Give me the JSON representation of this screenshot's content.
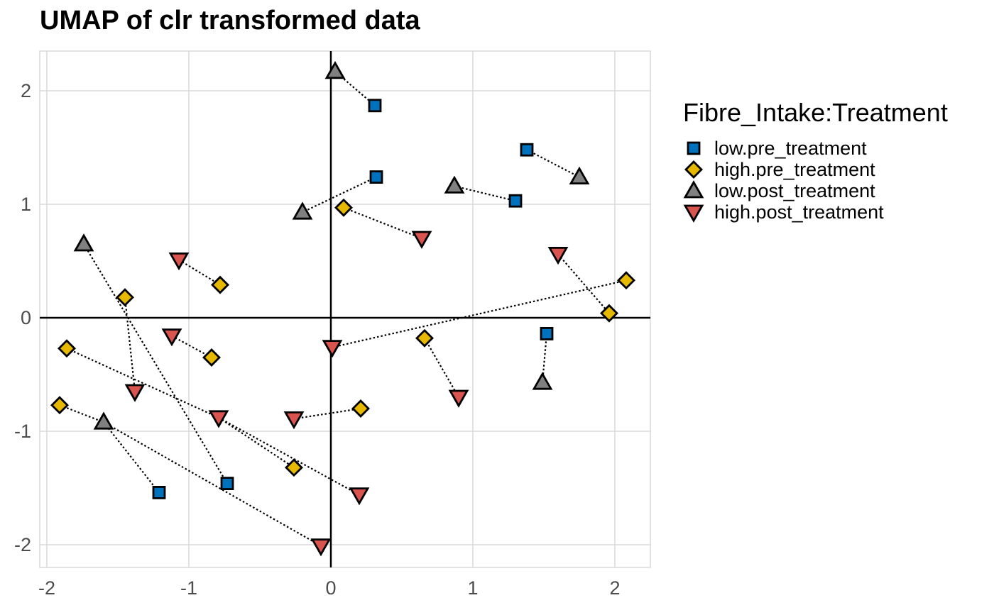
{
  "chart_data": {
    "type": "scatter",
    "title": "UMAP of clr transformed data",
    "xlabel": "",
    "ylabel": "",
    "xlim": [
      -2.05,
      2.25
    ],
    "ylim": [
      -2.2,
      2.35
    ],
    "xticks": [
      -2,
      -1,
      0,
      1,
      2
    ],
    "yticks": [
      -2,
      -1,
      0,
      1,
      2
    ],
    "grid": true,
    "reference_lines": {
      "x": 0,
      "y": 0
    },
    "legend": {
      "title": "Fibre_Intake:Treatment",
      "position": "right"
    },
    "series": [
      {
        "name": "low.pre_treatment",
        "marker": "square",
        "color": "#0072BD",
        "points": [
          {
            "x": 0.31,
            "y": 1.87
          },
          {
            "x": 0.32,
            "y": 1.24
          },
          {
            "x": 1.38,
            "y": 1.48
          },
          {
            "x": 1.3,
            "y": 1.03
          },
          {
            "x": 1.52,
            "y": -0.14
          },
          {
            "x": -1.21,
            "y": -1.54
          },
          {
            "x": -0.73,
            "y": -1.46
          }
        ]
      },
      {
        "name": "high.pre_treatment",
        "marker": "diamond",
        "color": "#E6B800",
        "points": [
          {
            "x": 0.09,
            "y": 0.97
          },
          {
            "x": -0.78,
            "y": 0.29
          },
          {
            "x": -1.45,
            "y": 0.18
          },
          {
            "x": 2.08,
            "y": 0.33
          },
          {
            "x": 1.96,
            "y": 0.04
          },
          {
            "x": -1.86,
            "y": -0.27
          },
          {
            "x": -0.84,
            "y": -0.35
          },
          {
            "x": 0.66,
            "y": -0.18
          },
          {
            "x": -1.91,
            "y": -0.77
          },
          {
            "x": 0.21,
            "y": -0.8
          },
          {
            "x": -0.26,
            "y": -1.32
          }
        ]
      },
      {
        "name": "low.post_treatment",
        "marker": "triangle-up",
        "color": "#808080",
        "points": [
          {
            "x": 0.03,
            "y": 2.17
          },
          {
            "x": -0.2,
            "y": 0.93
          },
          {
            "x": 0.87,
            "y": 1.16
          },
          {
            "x": 1.75,
            "y": 1.24
          },
          {
            "x": -1.74,
            "y": 0.65
          },
          {
            "x": 1.49,
            "y": -0.57
          },
          {
            "x": -1.6,
            "y": -0.92
          }
        ]
      },
      {
        "name": "high.post_treatment",
        "marker": "triangle-down",
        "color": "#D9534F",
        "points": [
          {
            "x": 0.64,
            "y": 0.7
          },
          {
            "x": -1.07,
            "y": 0.51
          },
          {
            "x": 1.6,
            "y": 0.56
          },
          {
            "x": -1.12,
            "y": -0.16
          },
          {
            "x": 0.01,
            "y": -0.26
          },
          {
            "x": -1.38,
            "y": -0.65
          },
          {
            "x": 0.9,
            "y": -0.7
          },
          {
            "x": -0.79,
            "y": -0.88
          },
          {
            "x": -0.26,
            "y": -0.89
          },
          {
            "x": 0.2,
            "y": -1.56
          },
          {
            "x": -0.07,
            "y": -2.01
          }
        ]
      }
    ],
    "connections": [
      [
        [
          0.31,
          1.87
        ],
        [
          0.03,
          2.17
        ]
      ],
      [
        [
          0.32,
          1.24
        ],
        [
          -0.2,
          0.93
        ]
      ],
      [
        [
          0.09,
          0.97
        ],
        [
          0.64,
          0.7
        ]
      ],
      [
        [
          1.38,
          1.48
        ],
        [
          1.75,
          1.24
        ]
      ],
      [
        [
          0.87,
          1.16
        ],
        [
          1.3,
          1.03
        ]
      ],
      [
        [
          1.6,
          0.56
        ],
        [
          1.96,
          0.04
        ]
      ],
      [
        [
          2.08,
          0.33
        ],
        [
          0.01,
          -0.26
        ]
      ],
      [
        [
          1.52,
          -0.14
        ],
        [
          1.49,
          -0.57
        ]
      ],
      [
        [
          0.66,
          -0.18
        ],
        [
          0.9,
          -0.7
        ]
      ],
      [
        [
          -1.07,
          0.51
        ],
        [
          -0.78,
          0.29
        ]
      ],
      [
        [
          -1.12,
          -0.16
        ],
        [
          -0.84,
          -0.35
        ]
      ],
      [
        [
          -1.45,
          0.18
        ],
        [
          -1.38,
          -0.65
        ]
      ],
      [
        [
          -1.74,
          0.65
        ],
        [
          -0.73,
          -1.46
        ]
      ],
      [
        [
          -1.86,
          -0.27
        ],
        [
          -0.79,
          -0.88
        ]
      ],
      [
        [
          -0.79,
          -0.88
        ],
        [
          0.2,
          -1.56
        ]
      ],
      [
        [
          -0.26,
          -0.89
        ],
        [
          0.21,
          -0.8
        ]
      ],
      [
        [
          -1.91,
          -0.77
        ],
        [
          -1.6,
          -0.92
        ]
      ],
      [
        [
          -1.6,
          -0.92
        ],
        [
          -1.21,
          -1.54
        ]
      ],
      [
        [
          -1.6,
          -0.92
        ],
        [
          -0.07,
          -2.01
        ]
      ],
      [
        [
          -0.79,
          -0.88
        ],
        [
          -0.26,
          -1.32
        ]
      ]
    ]
  }
}
